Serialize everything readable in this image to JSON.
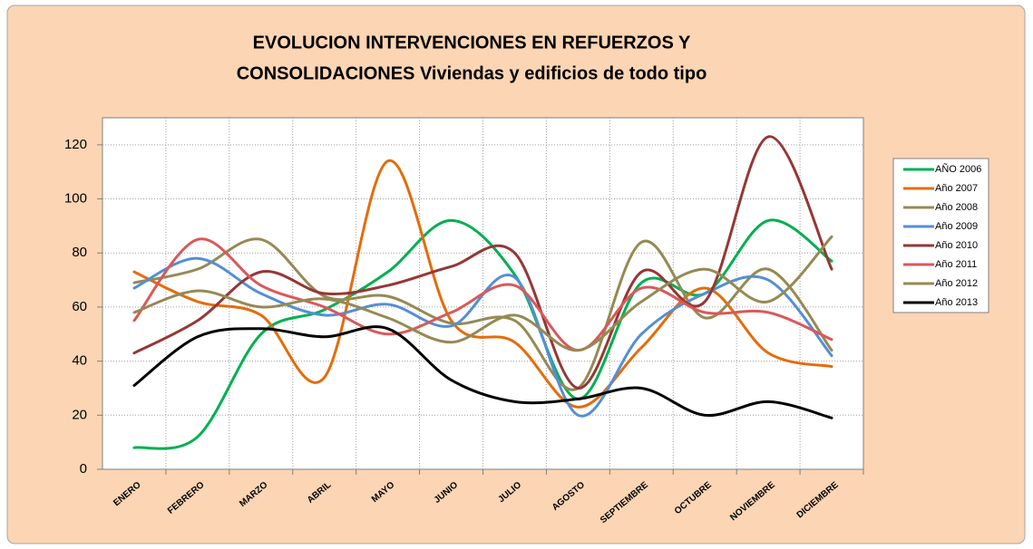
{
  "chart_data": {
    "type": "line",
    "title": [
      "EVOLUCION INTERVENCIONES EN REFUERZOS Y",
      "CONSOLIDACIONES Viviendas y edificios de todo tipo"
    ],
    "categories": [
      "ENERO",
      "FEBRERO",
      "MARZO",
      "ABRIL",
      "MAYO",
      "JUNIO",
      "JULIO",
      "AGOSTO",
      "SEPTIEMBRE",
      "OCTUBRE",
      "NOVIEMBRE",
      "DICIEMBRE"
    ],
    "series": [
      {
        "name": "AÑO 2006",
        "color": "#00b050",
        "values": [
          8,
          12,
          50,
          59,
          73,
          92,
          72,
          26,
          69,
          65,
          92,
          77
        ]
      },
      {
        "name": "Año 2007",
        "color": "#e46c0a",
        "values": [
          73,
          62,
          57,
          34,
          114,
          55,
          47,
          23,
          45,
          67,
          43,
          38
        ]
      },
      {
        "name": "Año 2008",
        "color": "#948a54",
        "values": [
          69,
          74,
          85,
          64,
          64,
          54,
          55,
          30,
          84,
          56,
          74,
          44
        ]
      },
      {
        "name": "Año 2009",
        "color": "#558ed5",
        "values": [
          67,
          78,
          65,
          57,
          61,
          53,
          71,
          20,
          50,
          65,
          70,
          42
        ]
      },
      {
        "name": "Año 2010",
        "color": "#953735",
        "values": [
          43,
          55,
          73,
          65,
          68,
          75,
          80,
          30,
          73,
          62,
          123,
          74
        ]
      },
      {
        "name": "Año 2011",
        "color": "#d9595a",
        "values": [
          55,
          85,
          68,
          60,
          50,
          58,
          68,
          44,
          67,
          58,
          58,
          48
        ]
      },
      {
        "name": "Año 2012",
        "color": "#948a54",
        "values": [
          58,
          66,
          60,
          63,
          56,
          47,
          57,
          44,
          62,
          74,
          62,
          86
        ]
      },
      {
        "name": "Año 2013",
        "color": "#000000",
        "values": [
          31,
          49,
          52,
          49,
          52,
          33,
          25,
          26,
          30,
          20,
          25,
          19
        ]
      }
    ],
    "ylim": [
      0,
      130
    ],
    "yticks": [
      0,
      20,
      40,
      60,
      80,
      100,
      120
    ],
    "grid": true,
    "legend": "right"
  }
}
